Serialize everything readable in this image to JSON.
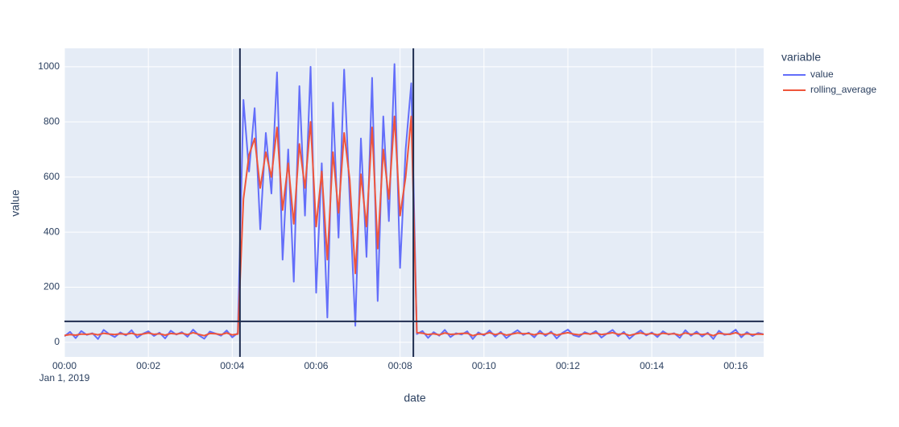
{
  "chart_data": {
    "type": "line",
    "xlabel": "date",
    "ylabel": "value",
    "legend_title": "variable",
    "date_label": "Jan 1, 2019",
    "x": [
      0,
      8,
      16,
      24,
      32,
      40,
      48,
      56,
      64,
      72,
      80,
      88,
      96,
      104,
      112,
      120,
      128,
      136,
      144,
      152,
      160,
      168,
      176,
      184,
      192,
      200,
      208,
      216,
      224,
      232,
      240,
      248,
      256,
      264,
      272,
      280,
      288,
      296,
      304,
      312,
      320,
      328,
      336,
      344,
      352,
      360,
      368,
      376,
      384,
      392,
      400,
      408,
      416,
      424,
      432,
      440,
      448,
      456,
      464,
      472,
      480,
      488,
      496,
      504,
      512,
      520,
      528,
      536,
      544,
      552,
      560,
      568,
      576,
      584,
      592,
      600,
      608,
      616,
      624,
      632,
      640,
      648,
      656,
      664,
      672,
      680,
      688,
      696,
      704,
      712,
      720,
      728,
      736,
      744,
      752,
      760,
      768,
      776,
      784,
      792,
      800,
      808,
      816,
      824,
      832,
      840,
      848,
      856,
      864,
      872,
      880,
      888,
      896,
      904,
      912,
      920,
      928,
      936,
      944,
      952,
      960,
      968,
      976,
      984,
      992,
      1000
    ],
    "series": [
      {
        "name": "value",
        "color": "#636efa",
        "values": [
          22,
          38,
          15,
          41,
          27,
          33,
          12,
          45,
          30,
          19,
          36,
          25,
          44,
          17,
          31,
          40,
          23,
          35,
          14,
          42,
          28,
          37,
          20,
          46,
          26,
          13,
          39,
          32,
          24,
          43,
          18,
          34,
          880,
          620,
          850,
          410,
          760,
          540,
          980,
          300,
          700,
          220,
          930,
          460,
          1000,
          180,
          650,
          90,
          870,
          380,
          990,
          520,
          60,
          740,
          310,
          960,
          150,
          820,
          440,
          1010,
          270,
          700,
          940,
          30,
          41,
          16,
          37,
          24,
          45,
          19,
          33,
          28,
          40,
          12,
          36,
          25,
          43,
          21,
          38,
          15,
          31,
          44,
          27,
          35,
          18,
          42,
          23,
          39,
          14,
          34,
          46,
          26,
          20,
          37,
          29,
          41,
          17,
          32,
          45,
          22,
          38,
          13,
          30,
          43,
          25,
          36,
          19,
          40,
          28,
          33,
          16,
          44,
          24,
          39,
          21,
          35,
          12,
          42,
          27,
          31,
          46,
          18,
          37,
          23,
          34,
          29
        ]
      },
      {
        "name": "rolling_average",
        "color": "#ef553b",
        "values": [
          25,
          28,
          26,
          30,
          29,
          31,
          27,
          33,
          30,
          28,
          31,
          29,
          33,
          27,
          30,
          34,
          29,
          31,
          26,
          32,
          30,
          33,
          28,
          35,
          29,
          24,
          32,
          31,
          28,
          34,
          27,
          30,
          520,
          680,
          740,
          560,
          690,
          600,
          780,
          480,
          650,
          430,
          720,
          560,
          800,
          420,
          620,
          300,
          690,
          470,
          760,
          590,
          250,
          610,
          420,
          780,
          340,
          700,
          520,
          820,
          460,
          600,
          820,
          35,
          33,
          28,
          31,
          27,
          34,
          29,
          30,
          32,
          33,
          24,
          30,
          29,
          35,
          28,
          33,
          26,
          30,
          34,
          31,
          32,
          27,
          33,
          29,
          34,
          26,
          31,
          35,
          30,
          27,
          32,
          30,
          34,
          28,
          31,
          35,
          29,
          32,
          25,
          30,
          34,
          29,
          32,
          27,
          33,
          30,
          31,
          26,
          34,
          29,
          32,
          28,
          31,
          24,
          33,
          30,
          29,
          35,
          27,
          31,
          28,
          30,
          29
        ]
      }
    ],
    "xlim": [
      0,
      1000
    ],
    "xticks": [
      {
        "value": 0,
        "label": "00:00"
      },
      {
        "value": 120,
        "label": "00:02"
      },
      {
        "value": 240,
        "label": "00:04"
      },
      {
        "value": 360,
        "label": "00:06"
      },
      {
        "value": 480,
        "label": "00:08"
      },
      {
        "value": 600,
        "label": "00:10"
      },
      {
        "value": 720,
        "label": "00:12"
      },
      {
        "value": 840,
        "label": "00:14"
      },
      {
        "value": 960,
        "label": "00:16"
      }
    ],
    "ylim": [
      -53,
      1067
    ],
    "yticks": [
      0,
      200,
      400,
      600,
      800,
      1000
    ],
    "vlines": [
      251,
      499
    ],
    "hline": 76,
    "line_color": "#1f2d4f",
    "grid": true,
    "legend": "right"
  }
}
